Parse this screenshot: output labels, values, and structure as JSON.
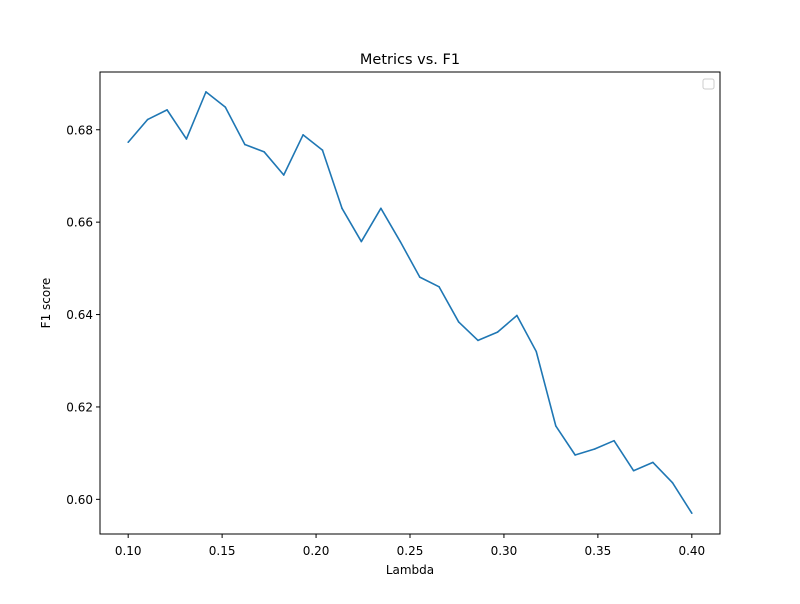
{
  "chart_data": {
    "type": "line",
    "title": "Metrics vs. F1",
    "xlabel": "Lambda",
    "ylabel": "F1 score",
    "xlim": [
      0.085,
      0.415
    ],
    "ylim": [
      0.5925,
      0.6925
    ],
    "xticks": [
      0.1,
      0.15,
      0.2,
      0.25,
      0.3,
      0.35,
      0.4
    ],
    "xtick_labels": [
      "0.10",
      "0.15",
      "0.20",
      "0.25",
      "0.30",
      "0.35",
      "0.40"
    ],
    "yticks": [
      0.6,
      0.62,
      0.64,
      0.66,
      0.68
    ],
    "ytick_labels": [
      "0.60",
      "0.62",
      "0.64",
      "0.66",
      "0.68"
    ],
    "grid": false,
    "legend": "upper-right (empty)",
    "line_color": "#1f77b4",
    "series": [
      {
        "x": [
          0.1,
          0.1103,
          0.1207,
          0.131,
          0.1414,
          0.1517,
          0.1621,
          0.1724,
          0.1828,
          0.1931,
          0.2034,
          0.2138,
          0.2241,
          0.2345,
          0.2448,
          0.2552,
          0.2655,
          0.2759,
          0.2862,
          0.2966,
          0.3069,
          0.3172,
          0.3276,
          0.3379,
          0.3483,
          0.3586,
          0.369,
          0.3793,
          0.3897,
          0.4
        ],
        "values": [
          0.6773,
          0.6822,
          0.6843,
          0.678,
          0.6882,
          0.6849,
          0.6768,
          0.6752,
          0.6702,
          0.6789,
          0.6756,
          0.663,
          0.6558,
          0.663,
          0.6558,
          0.6481,
          0.646,
          0.6384,
          0.6344,
          0.6362,
          0.6398,
          0.632,
          0.6159,
          0.6096,
          0.6109,
          0.6127,
          0.6062,
          0.608,
          0.6036,
          0.597
        ]
      }
    ]
  }
}
